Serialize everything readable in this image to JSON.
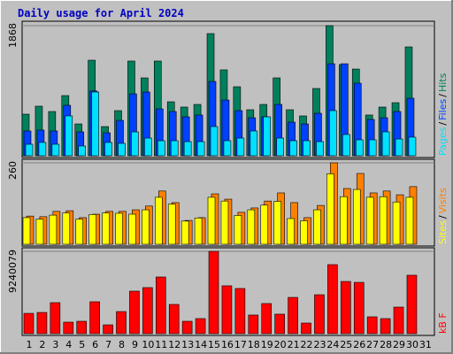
{
  "title": "Daily usage for April 2024",
  "chart_data": [
    {
      "type": "bar",
      "separator": "/",
      "ylim": [
        0,
        1868
      ],
      "yticks": [
        1868
      ],
      "series": [
        {
          "name": "Hits",
          "color": "#00805c",
          "values": [
            597,
            712,
            635,
            864,
            457,
            1372,
            419,
            648,
            1360,
            1118,
            1360,
            775,
            699,
            737,
            1754,
            1233,
            991,
            661,
            737,
            1118,
            661,
            572,
            966,
            1868,
            1309,
            1245,
            585,
            699,
            762,
            1563,
            null
          ]
        },
        {
          "name": "Files",
          "color": "#0040ff",
          "values": [
            356,
            369,
            356,
            724,
            343,
            930,
            330,
            508,
            889,
            915,
            673,
            635,
            559,
            585,
            1067,
            800,
            648,
            546,
            559,
            737,
            483,
            457,
            610,
            1321,
            1321,
            1042,
            521,
            546,
            635,
            826,
            null
          ]
        },
        {
          "name": "Pages",
          "color": "#00e0ff",
          "values": [
            165,
            191,
            165,
            572,
            140,
            915,
            191,
            178,
            343,
            254,
            216,
            216,
            203,
            203,
            419,
            216,
            254,
            356,
            559,
            254,
            216,
            216,
            203,
            648,
            305,
            229,
            229,
            343,
            241,
            267,
            null
          ]
        }
      ]
    },
    {
      "type": "bar",
      "separator": "/",
      "ylim": [
        0,
        260
      ],
      "yticks": [
        260
      ],
      "series": [
        {
          "name": "Visits",
          "color": "#ff8000",
          "values": [
            90,
            88,
            105,
            107,
            85,
            96,
            105,
            105,
            110,
            122,
            170,
            133,
            76,
            85,
            161,
            144,
            102,
            116,
            138,
            164,
            133,
            85,
            124,
            260,
            178,
            226,
            164,
            170,
            158,
            184,
            null
          ]
        },
        {
          "name": "Sites",
          "color": "#ffff00",
          "values": [
            85,
            80,
            93,
            100,
            80,
            95,
            100,
            99,
            96,
            110,
            150,
            128,
            74,
            84,
            150,
            138,
            92,
            110,
            125,
            137,
            82,
            75,
            110,
            225,
            152,
            175,
            150,
            152,
            135,
            150,
            null
          ]
        }
      ]
    },
    {
      "type": "bar",
      "separator": "/",
      "ylim": [
        0,
        9240079
      ],
      "yticks": [
        9240079
      ],
      "categories": [
        "1",
        "2",
        "3",
        "4",
        "5",
        "6",
        "7",
        "8",
        "9",
        "10",
        "11",
        "12",
        "13",
        "14",
        "15",
        "16",
        "17",
        "18",
        "19",
        "20",
        "21",
        "22",
        "23",
        "24",
        "25",
        "26",
        "27",
        "28",
        "29",
        "30",
        "31"
      ],
      "category_colors": [
        "#000000",
        "#000000",
        "#000000",
        "#000000",
        "#000000",
        "#00805c",
        "#00805c",
        "#000000",
        "#000000",
        "#000000",
        "#000000",
        "#000000",
        "#00805c",
        "#00805c",
        "#000000",
        "#000000",
        "#000000",
        "#000000",
        "#000000",
        "#00805c",
        "#00805c",
        "#000000",
        "#000000",
        "#000000",
        "#000000",
        "#000000",
        "#00805c",
        "#00805c",
        "#000000",
        "#000000",
        "#000000"
      ],
      "series": [
        {
          "name": "kB F",
          "color": "#ff0000",
          "values": [
            2280000,
            2380000,
            3480000,
            1290000,
            1390000,
            3580000,
            990000,
            2480000,
            4770000,
            5170000,
            6360000,
            3280000,
            1390000,
            1690000,
            9240079,
            5370000,
            5070000,
            2090000,
            3380000,
            2190000,
            4070000,
            1190000,
            4370000,
            7750000,
            5860000,
            5760000,
            1890000,
            1690000,
            2980000,
            6560000,
            null
          ]
        }
      ]
    }
  ]
}
